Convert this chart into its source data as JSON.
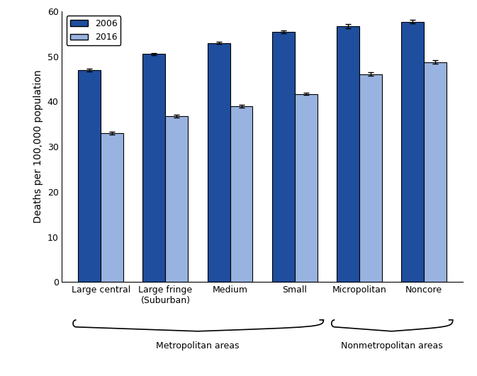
{
  "categories": [
    "Large central",
    "Large fringe\n(Suburban)",
    "Medium",
    "Small",
    "Micropolitan",
    "Noncore"
  ],
  "values_2006": [
    47.0,
    50.5,
    53.0,
    55.5,
    56.7,
    57.7
  ],
  "values_2016": [
    33.0,
    36.7,
    39.0,
    41.7,
    46.1,
    48.7
  ],
  "errors_2006": [
    0.3,
    0.3,
    0.3,
    0.3,
    0.4,
    0.4
  ],
  "errors_2016": [
    0.3,
    0.3,
    0.3,
    0.3,
    0.4,
    0.4
  ],
  "color_2006": "#1f4e9e",
  "color_2016": "#99b3e0",
  "ylabel": "Deaths per 100,000 population",
  "ylim": [
    0,
    60
  ],
  "yticks": [
    0,
    10,
    20,
    30,
    40,
    50,
    60
  ],
  "legend_labels": [
    "2006",
    "2016"
  ],
  "metro_label": "Metropolitan areas",
  "nonmetro_label": "Nonmetropolitan areas",
  "bar_width": 0.35,
  "background_color": "#ffffff",
  "errorbar_color": "#000000",
  "edge_color": "#000000"
}
